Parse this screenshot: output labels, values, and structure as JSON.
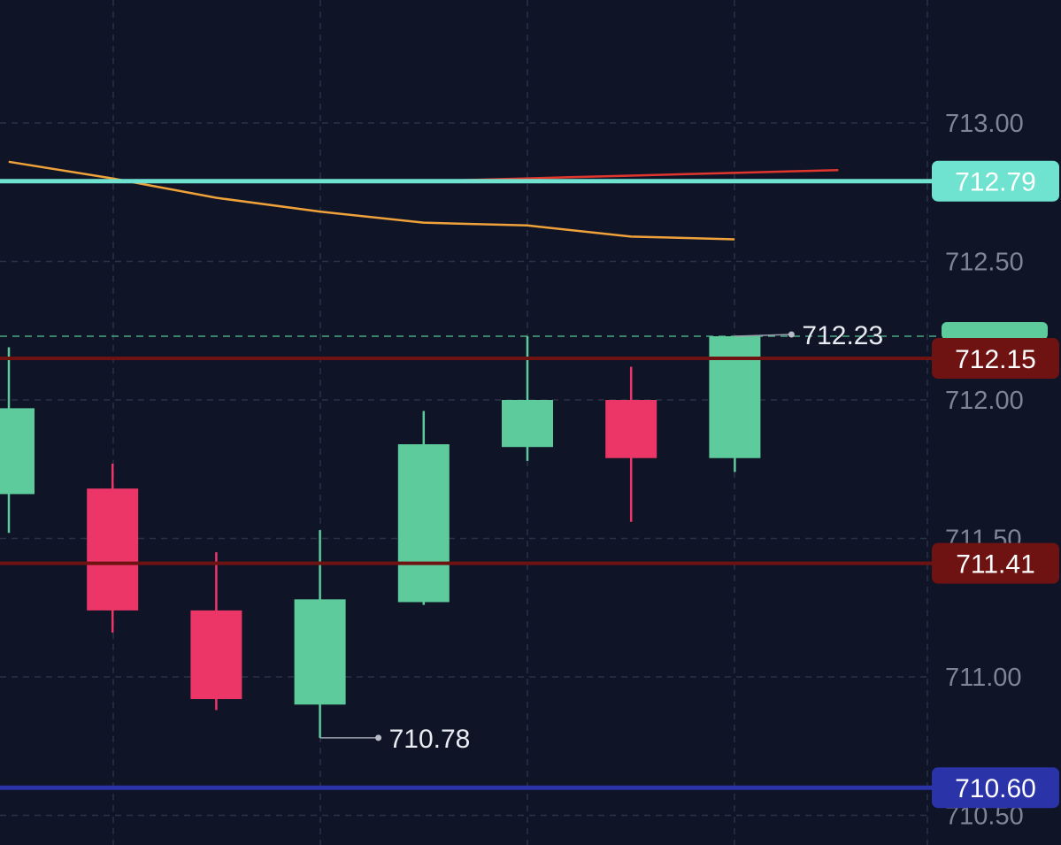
{
  "chart_data": {
    "type": "candlestick",
    "title": "",
    "xlabel": "",
    "ylabel": "",
    "ylim": [
      710.38,
      713.4
    ],
    "y_ticks": [
      "713.00",
      "712.50",
      "712.00",
      "711.50",
      "711.00",
      "710.50"
    ],
    "grid": true,
    "colors": {
      "background": "#0f1527",
      "grid": "#2a3245",
      "up": "#5ecb9c",
      "down": "#ec3668",
      "axis_text": "#7f8596"
    },
    "candles": [
      {
        "open": 711.66,
        "high": 712.19,
        "low": 711.52,
        "close": 711.97
      },
      {
        "open": 711.68,
        "high": 711.77,
        "low": 711.16,
        "close": 711.24
      },
      {
        "open": 711.24,
        "high": 711.45,
        "low": 710.88,
        "close": 710.92
      },
      {
        "open": 710.9,
        "high": 711.53,
        "low": 710.78,
        "close": 711.28
      },
      {
        "open": 711.27,
        "high": 711.96,
        "low": 711.26,
        "close": 711.84
      },
      {
        "open": 711.83,
        "high": 712.23,
        "low": 711.78,
        "close": 712.0
      },
      {
        "open": 712.0,
        "high": 712.12,
        "low": 711.56,
        "close": 711.79
      },
      {
        "open": 711.79,
        "high": 712.23,
        "low": 711.74,
        "close": 712.23
      }
    ],
    "moving_averages": [
      {
        "color": "#e0362d",
        "points": [
          [
            2,
            712.79
          ],
          [
            3,
            712.79
          ],
          [
            4,
            712.8
          ],
          [
            5,
            712.81
          ],
          [
            6,
            712.82
          ],
          [
            7,
            712.83
          ]
        ]
      },
      {
        "color": "#f0a23a",
        "points": [
          [
            -1,
            712.86
          ],
          [
            0,
            712.8
          ],
          [
            1,
            712.73
          ],
          [
            2,
            712.68
          ],
          [
            3,
            712.64
          ],
          [
            4,
            712.63
          ],
          [
            5,
            712.59
          ],
          [
            6,
            712.58
          ]
        ]
      }
    ],
    "price_lines": [
      {
        "value": 712.79,
        "label": "712.79",
        "line_color": "#6fe3cf",
        "badge_color": "#6fe3cf",
        "text_color": "#ffffff",
        "width": 5,
        "dashed": false
      },
      {
        "value": 712.15,
        "label": "712.15",
        "line_color": "#6e1212",
        "badge_color": "#6e1212",
        "text_color": "#ffffff",
        "width": 4,
        "dashed": false
      },
      {
        "value": 711.41,
        "label": "711.41",
        "line_color": "#6e1212",
        "badge_color": "#6e1212",
        "text_color": "#ffffff",
        "width": 4,
        "dashed": false
      },
      {
        "value": 710.6,
        "label": "710.60",
        "line_color": "#2a33a8",
        "badge_color": "#2a33a8",
        "text_color": "#ffffff",
        "width": 5,
        "dashed": false
      }
    ],
    "current_price_line": {
      "value": 712.23,
      "color": "#5ecb9c"
    },
    "annotations": [
      {
        "label": "712.23",
        "candle": 7,
        "value": 712.23,
        "kind": "high"
      },
      {
        "label": "710.78",
        "candle": 3,
        "value": 710.78,
        "kind": "low"
      }
    ]
  }
}
